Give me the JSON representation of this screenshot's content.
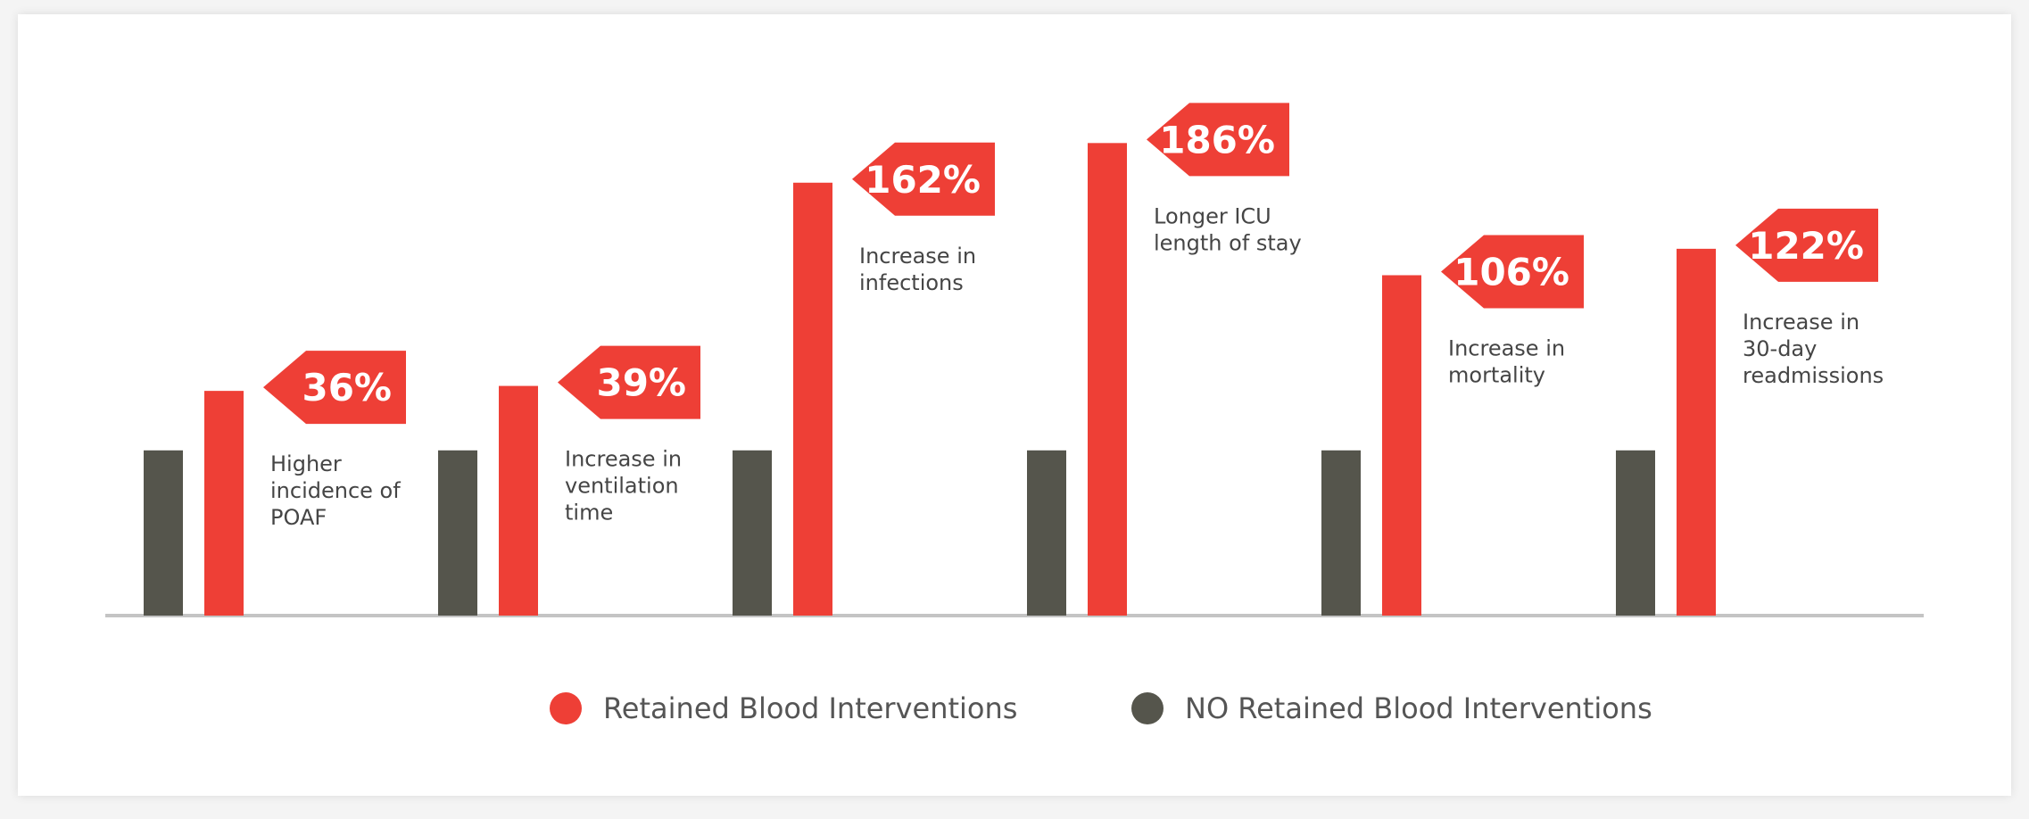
{
  "colors": {
    "retained": "#ee3f36",
    "no_retained": "#55554c",
    "axis": "#c4c4c4"
  },
  "chart_data": {
    "type": "bar",
    "categories": [
      "Higher incidence of POAF",
      "Increase in ventilation time",
      "Increase in infections",
      "Longer ICU length of stay",
      "Increase in mortality",
      "Increase in 30-day readmissions"
    ],
    "category_label_lines": [
      [
        "Higher",
        "incidence of",
        "POAF"
      ],
      [
        "Increase in",
        "ventilation",
        "time"
      ],
      [
        "Increase in",
        "infections"
      ],
      [
        "Longer ICU",
        "length of stay"
      ],
      [
        "Increase in",
        "mortality"
      ],
      [
        "Increase in",
        "30-day",
        "readmissions"
      ]
    ],
    "series": [
      {
        "name": "NO Retained Blood Interventions",
        "values": [
          100,
          100,
          100,
          100,
          100,
          100
        ]
      },
      {
        "name": "Retained Blood Interventions",
        "values": [
          136,
          139,
          262,
          286,
          206,
          222
        ]
      }
    ],
    "callouts": [
      "36%",
      "39%",
      "162%",
      "186%",
      "106%",
      "122%"
    ],
    "ylim": [
      0,
      300
    ],
    "legend": "bottom",
    "grid": false
  }
}
